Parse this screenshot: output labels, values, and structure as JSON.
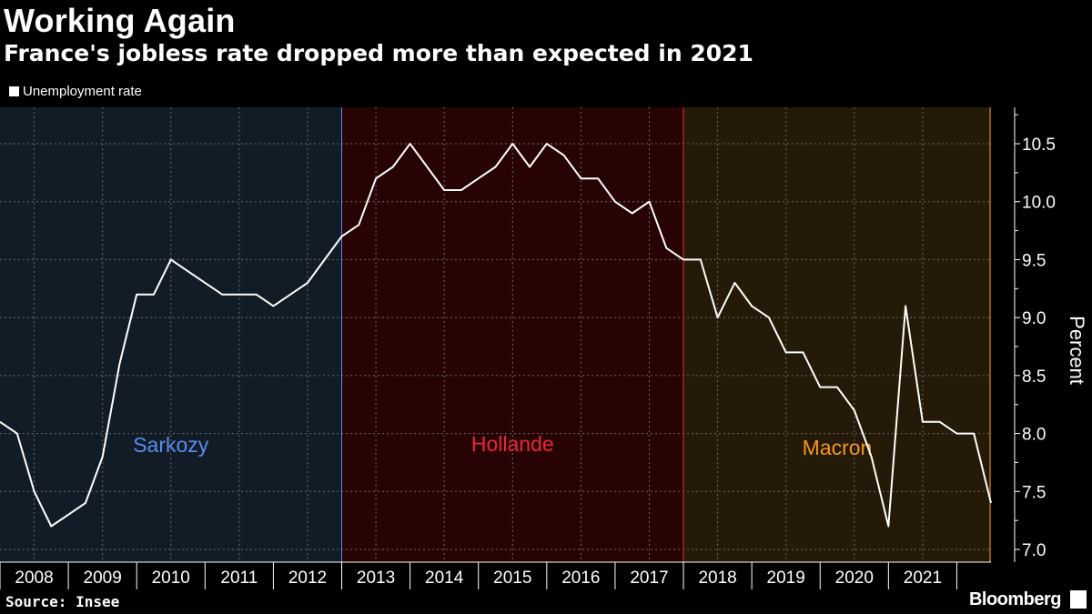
{
  "header": {
    "title": "Working Again",
    "subtitle": "France's jobless rate dropped more than expected in 2021"
  },
  "footer": {
    "source": "Source: Insee",
    "brand": "Bloomberg"
  },
  "chart_data": {
    "type": "line",
    "title": "Working Again",
    "subtitle": "France's jobless rate dropped more than expected in 2021",
    "ylabel": "Percent",
    "xlabel": "",
    "ylim": [
      6.9,
      10.8
    ],
    "yticks": [
      "7.0",
      "7.5",
      "8.0",
      "8.5",
      "9.0",
      "9.5",
      "10.0",
      "10.5"
    ],
    "xticks": [
      "2008",
      "2009",
      "2010",
      "2011",
      "2012",
      "2013",
      "2014",
      "2015",
      "2016",
      "2017",
      "2018",
      "2019",
      "2020",
      "2021"
    ],
    "legend": [
      "Unemployment rate"
    ],
    "grid": true,
    "eras": [
      {
        "name": "Sarkozy",
        "start": 2007.5,
        "end": 2012.5,
        "color": "#5b8cf0",
        "fill": "#111c26"
      },
      {
        "name": "Hollande",
        "start": 2012.5,
        "end": 2017.5,
        "color": "#e8283c",
        "fill": "#270303"
      },
      {
        "name": "Macron",
        "start": 2017.5,
        "end": 2022.0,
        "color": "#f5961e",
        "fill": "#251907"
      }
    ],
    "series": [
      {
        "name": "Unemployment rate",
        "color": "#ffffff",
        "x": [
          2007.5,
          2007.75,
          2008.0,
          2008.25,
          2008.5,
          2008.75,
          2009.0,
          2009.25,
          2009.5,
          2009.75,
          2010.0,
          2010.25,
          2010.5,
          2010.75,
          2011.0,
          2011.25,
          2011.5,
          2011.75,
          2012.0,
          2012.25,
          2012.5,
          2012.75,
          2013.0,
          2013.25,
          2013.5,
          2013.75,
          2014.0,
          2014.25,
          2014.5,
          2014.75,
          2015.0,
          2015.25,
          2015.5,
          2015.75,
          2016.0,
          2016.25,
          2016.5,
          2016.75,
          2017.0,
          2017.25,
          2017.5,
          2017.75,
          2018.0,
          2018.25,
          2018.5,
          2018.75,
          2019.0,
          2019.25,
          2019.5,
          2019.75,
          2020.0,
          2020.25,
          2020.5,
          2020.75,
          2021.0,
          2021.25,
          2021.5,
          2021.75,
          2022.0
        ],
        "values": [
          8.1,
          8.0,
          7.5,
          7.2,
          7.3,
          7.4,
          7.8,
          8.6,
          9.2,
          9.2,
          9.5,
          9.4,
          9.3,
          9.2,
          9.2,
          9.2,
          9.1,
          9.2,
          9.3,
          9.5,
          9.7,
          9.8,
          10.2,
          10.3,
          10.5,
          10.3,
          10.1,
          10.1,
          10.2,
          10.3,
          10.5,
          10.3,
          10.5,
          10.4,
          10.2,
          10.2,
          10.0,
          9.9,
          10.0,
          9.6,
          9.5,
          9.5,
          9.0,
          9.3,
          9.1,
          9.0,
          8.7,
          8.7,
          8.4,
          8.4,
          8.2,
          7.8,
          7.2,
          9.1,
          8.1,
          8.1,
          8.0,
          8.0,
          7.4
        ]
      }
    ]
  }
}
